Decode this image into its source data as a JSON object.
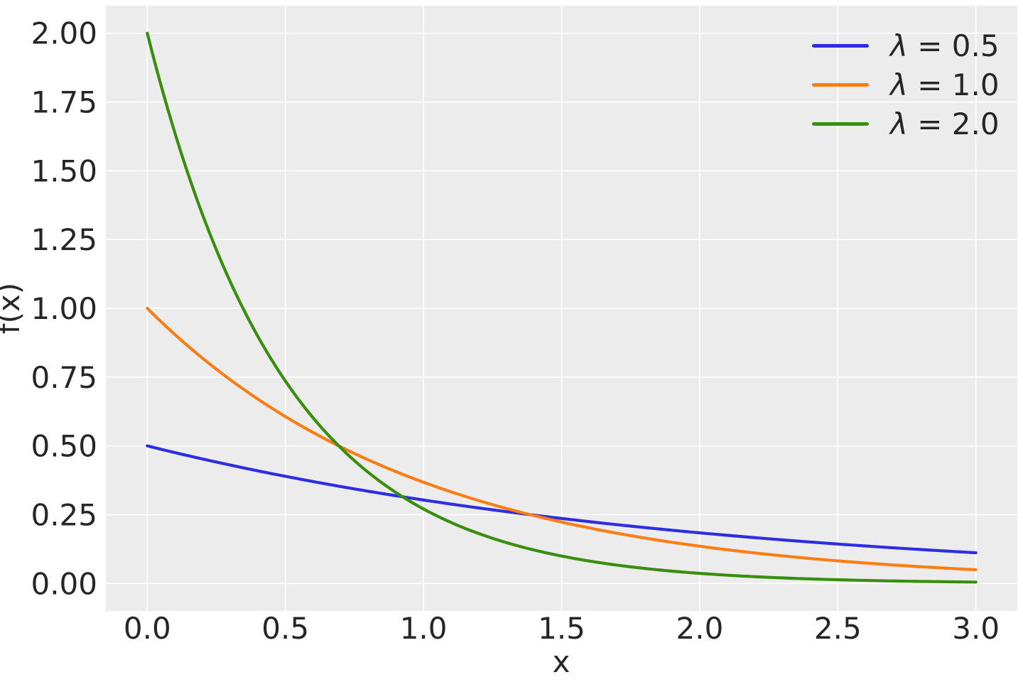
{
  "figure": {
    "background": "#ffffff",
    "text_color": "#262626"
  },
  "chart_data": {
    "type": "line",
    "title": "",
    "xlabel": "x",
    "ylabel": "f(x)",
    "function": "f(x) = lambda * exp(-lambda * x) (exponential distribution PDF)",
    "x_range": [
      0,
      3
    ],
    "xlim": [
      -0.15,
      3.15
    ],
    "ylim": [
      -0.1,
      2.1
    ],
    "grid": true,
    "axes_background": "#ececec",
    "grid_color": "#ffffff",
    "grid_width": 1.6,
    "line_width": 4.2,
    "xticks": {
      "values": [
        0,
        0.5,
        1,
        1.5,
        2,
        2.5,
        3
      ],
      "labels": [
        "0.0",
        "0.5",
        "1.0",
        "1.5",
        "2.0",
        "2.5",
        "3.0"
      ]
    },
    "yticks": {
      "values": [
        0,
        0.25,
        0.5,
        0.75,
        1,
        1.25,
        1.5,
        1.75,
        2
      ],
      "labels": [
        "0.00",
        "0.25",
        "0.50",
        "0.75",
        "1.00",
        "1.25",
        "1.50",
        "1.75",
        "2.00"
      ]
    },
    "sample_x": [
      0,
      0.25,
      0.5,
      0.75,
      1.0,
      1.25,
      1.5,
      1.75,
      2.0,
      2.25,
      2.5,
      2.75,
      3.0
    ],
    "series": [
      {
        "name": "λ = 0.5",
        "lambda": 0.5,
        "color": "#2d2de1",
        "values": [
          0.5,
          0.441,
          0.389,
          0.343,
          0.303,
          0.268,
          0.236,
          0.208,
          0.184,
          0.162,
          0.143,
          0.126,
          0.112
        ]
      },
      {
        "name": "λ = 1.0",
        "lambda": 1.0,
        "color": "#fa7e16",
        "values": [
          1.0,
          0.779,
          0.607,
          0.472,
          0.368,
          0.287,
          0.223,
          0.174,
          0.135,
          0.105,
          0.082,
          0.064,
          0.05
        ]
      },
      {
        "name": "λ = 2.0",
        "lambda": 2.0,
        "color": "#388e0d",
        "values": [
          2.0,
          1.213,
          0.736,
          0.446,
          0.271,
          0.164,
          0.1,
          0.06,
          0.037,
          0.022,
          0.013,
          0.008,
          0.005
        ]
      }
    ],
    "legend": {
      "position": "upper right",
      "frame": false,
      "items": [
        {
          "symbol": "λ",
          "rest": " = 0.5"
        },
        {
          "symbol": "λ",
          "rest": " = 1.0"
        },
        {
          "symbol": "λ",
          "rest": " = 2.0"
        }
      ]
    }
  }
}
